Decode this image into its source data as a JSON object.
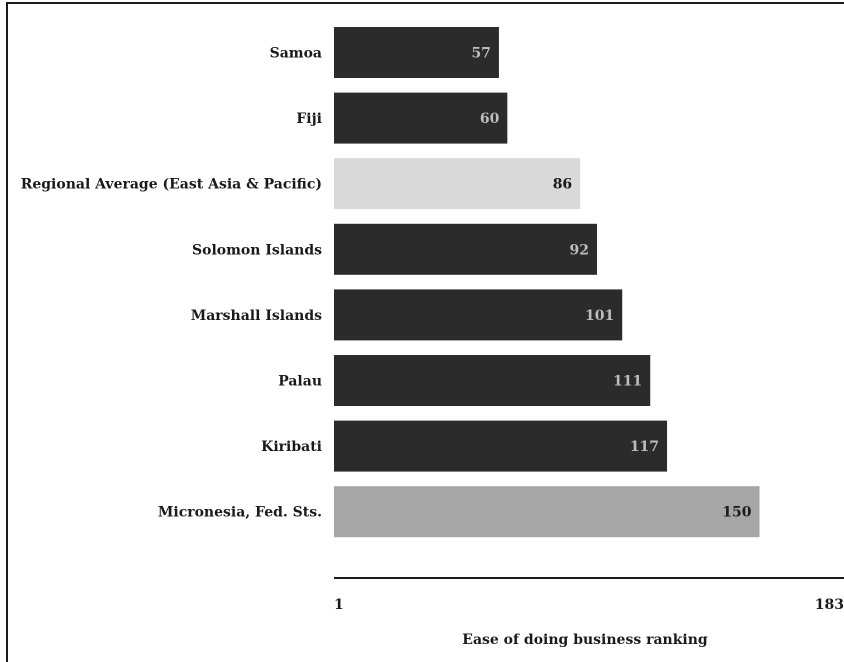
{
  "chart_data": {
    "type": "bar",
    "orientation": "horizontal",
    "categories": [
      "Samoa",
      "Fiji",
      "Regional Average (East Asia & Pacific)",
      "Solomon Islands",
      "Marshall Islands",
      "Palau",
      "Kiribati",
      "Micronesia, Fed. Sts."
    ],
    "values": [
      57,
      60,
      86,
      92,
      101,
      111,
      117,
      150
    ],
    "value_labels": [
      "57",
      "60",
      "86",
      "92",
      "101",
      "111",
      "117",
      "150"
    ],
    "bar_colors": [
      "#2b2b2b",
      "#2b2b2b",
      "#d9d9d9",
      "#2b2b2b",
      "#2b2b2b",
      "#2b2b2b",
      "#2b2b2b",
      "#a6a6a6"
    ],
    "label_colors": [
      "#bdbdbd",
      "#bdbdbd",
      "#1a1a1a",
      "#bdbdbd",
      "#bdbdbd",
      "#bdbdbd",
      "#bdbdbd",
      "#1a1a1a"
    ],
    "xlim": [
      1,
      183
    ],
    "xticks": [
      "1",
      "183"
    ],
    "xlabel": "Ease of doing business ranking",
    "ylabel": "",
    "title": "",
    "grid": false,
    "legend": "none"
  }
}
